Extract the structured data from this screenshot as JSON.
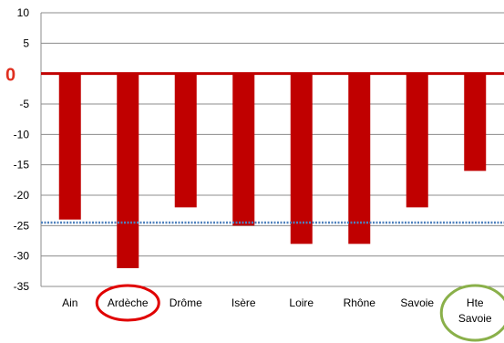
{
  "chart_data": {
    "type": "bar",
    "title": "",
    "xlabel": "",
    "ylabel": "",
    "ylim": [
      -35,
      10
    ],
    "yticks": [
      "10",
      "5",
      "",
      "-5",
      "-10",
      "-15",
      "-20",
      "-25",
      "-30",
      "-35"
    ],
    "ytick_values": [
      10,
      5,
      0,
      -5,
      -10,
      -15,
      -20,
      -25,
      -30,
      -35
    ],
    "zero_label": "0",
    "categories": [
      "Ain",
      "Ardèche",
      "Drôme",
      "Isère",
      "Loire",
      "Rhône",
      "Savoie",
      "Hte Savoie"
    ],
    "category_lines": [
      [
        "Ain"
      ],
      [
        "Ardèche"
      ],
      [
        "Drôme"
      ],
      [
        "Isère"
      ],
      [
        "Loire"
      ],
      [
        "Rhône"
      ],
      [
        "Savoie"
      ],
      [
        "Hte",
        "Savoie"
      ]
    ],
    "values": [
      -24,
      -32,
      -22,
      -25,
      -28,
      -28,
      -22,
      -16
    ],
    "reference_line": -24.5,
    "highlighted": [
      {
        "category": "Ardèche",
        "color": "#e00000"
      },
      {
        "category": "Hte Savoie",
        "color": "#8ab04a"
      }
    ],
    "grid": true,
    "colors": {
      "bar": "#c00000",
      "zero_line": "#c00000",
      "zero_label": "#e03020",
      "reference_line": "#4f81bd",
      "grid": "#8c8c8c"
    }
  }
}
